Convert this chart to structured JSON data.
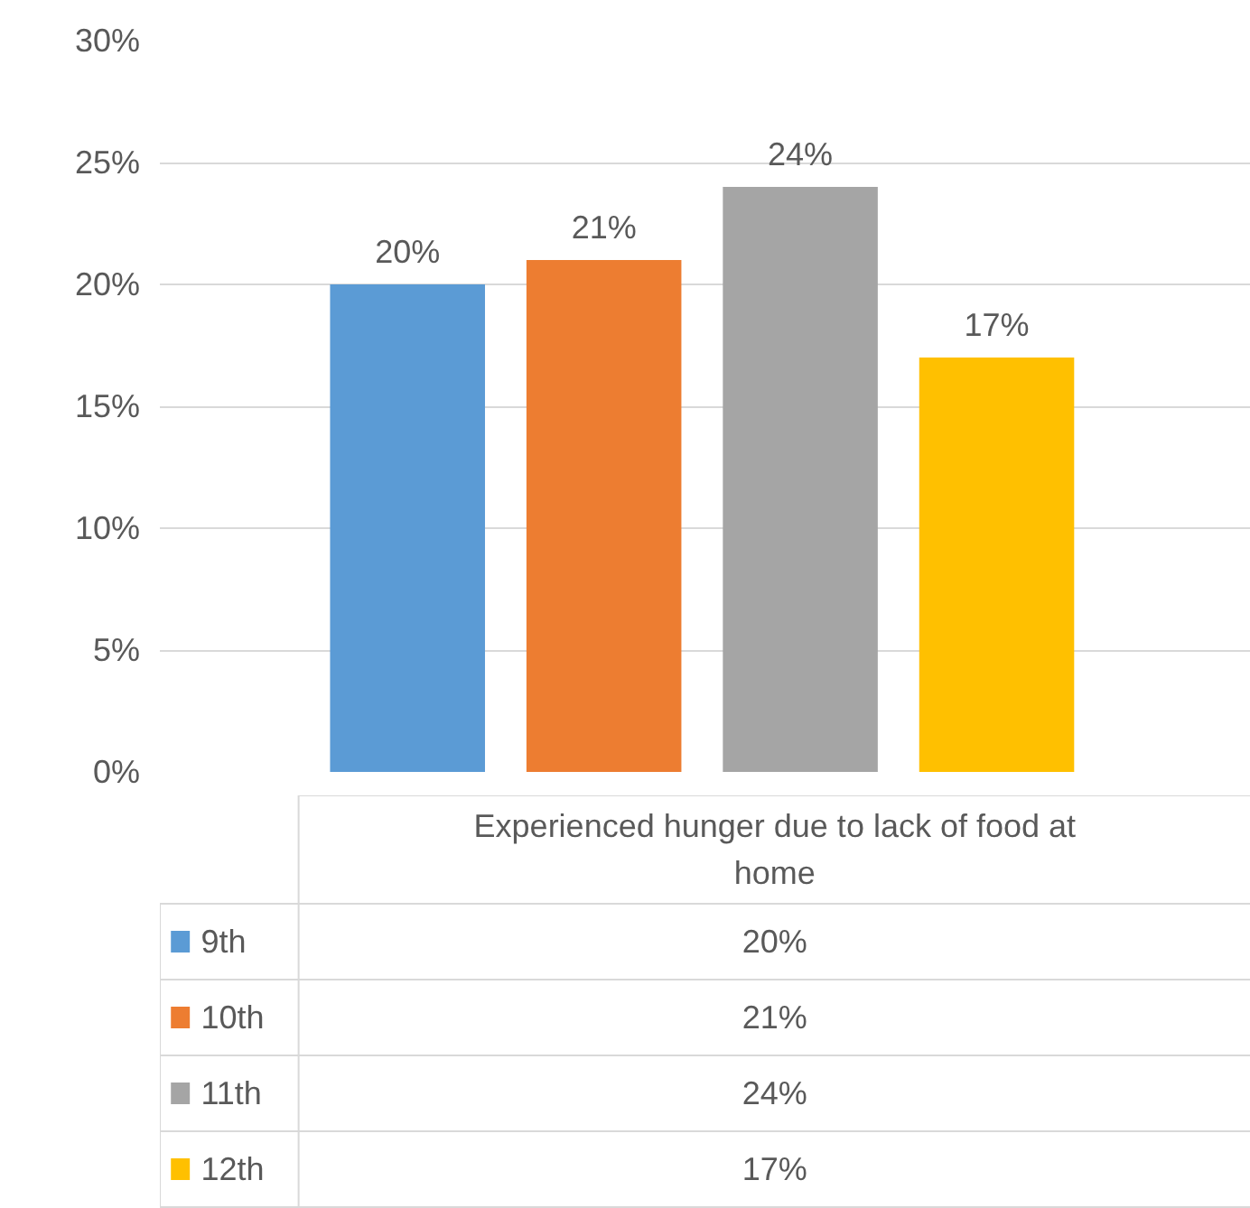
{
  "chart_data": {
    "type": "bar",
    "categories": [
      "Experienced hunger due to lack of food at home"
    ],
    "series": [
      {
        "name": "9th",
        "color": "#5b9bd5",
        "values": [
          20
        ],
        "value_labels": [
          "20%"
        ]
      },
      {
        "name": "10th",
        "color": "#ed7d31",
        "values": [
          21
        ],
        "value_labels": [
          "21%"
        ]
      },
      {
        "name": "11th",
        "color": "#a5a5a5",
        "values": [
          24
        ],
        "value_labels": [
          "24%"
        ]
      },
      {
        "name": "12th",
        "color": "#ffc000",
        "values": [
          17
        ],
        "value_labels": [
          "17%"
        ]
      }
    ],
    "ylim": [
      0,
      30
    ],
    "yticks": [
      {
        "value": 0,
        "label": "0%"
      },
      {
        "value": 5,
        "label": "5%"
      },
      {
        "value": 10,
        "label": "10%"
      },
      {
        "value": 15,
        "label": "15%"
      },
      {
        "value": 20,
        "label": "20%"
      },
      {
        "value": 25,
        "label": "25%"
      },
      {
        "value": 30,
        "label": "30%"
      }
    ],
    "grid": "y",
    "legend": "bottom"
  }
}
